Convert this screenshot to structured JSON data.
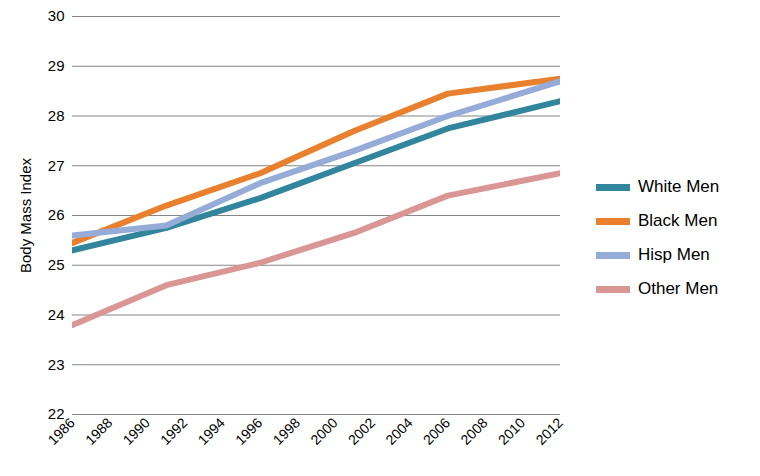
{
  "chart_data": {
    "type": "line",
    "y_label": "Body Mass Index",
    "x": [
      1986,
      1991,
      1996,
      2001,
      2006,
      2012
    ],
    "series": [
      {
        "name": "White Men",
        "color": "#31859c",
        "values": [
          25.3,
          25.75,
          26.35,
          27.05,
          27.75,
          28.3
        ]
      },
      {
        "name": "Black Men",
        "color": "#e8802e",
        "values": [
          25.45,
          26.2,
          26.85,
          27.7,
          28.45,
          28.75
        ]
      },
      {
        "name": "Hisp Men",
        "color": "#95acd8",
        "values": [
          25.6,
          25.8,
          26.65,
          27.3,
          28.0,
          28.7
        ]
      },
      {
        "name": "Other Men",
        "color": "#d99694",
        "values": [
          23.8,
          24.6,
          25.05,
          25.65,
          26.4,
          26.85
        ]
      }
    ],
    "xlim": [
      1986,
      2012
    ],
    "xticks": [
      1986,
      1988,
      1990,
      1992,
      1994,
      1996,
      1998,
      2000,
      2002,
      2004,
      2006,
      2008,
      2010,
      2012
    ],
    "ylim": [
      22,
      30
    ],
    "yticks": [
      22,
      23,
      24,
      25,
      26,
      27,
      28,
      29,
      30
    ],
    "grid": true,
    "legend": "right"
  }
}
